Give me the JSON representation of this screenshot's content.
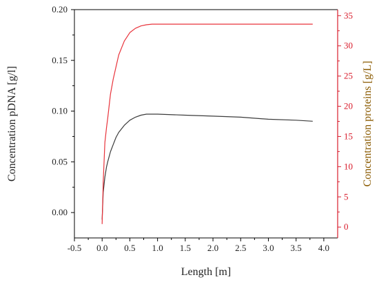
{
  "chart_data": {
    "type": "line",
    "title": "",
    "xlabel": "Length [m]",
    "ylabel": "Concentration pDNA [g/l]",
    "y2label": "Concentration proteins [g/L]",
    "xlim": [
      -0.5,
      4.25
    ],
    "ylim": [
      -0.025,
      0.2
    ],
    "y2lim": [
      -1.8,
      36
    ],
    "xticks": [
      -0.5,
      0.0,
      0.5,
      1.0,
      1.5,
      2.0,
      2.5,
      3.0,
      3.5,
      4.0
    ],
    "xtick_labels": [
      "-0.5",
      "0.0",
      "0.5",
      "1.0",
      "1.5",
      "2.0",
      "2.5",
      "3.0",
      "3.5",
      "4.0"
    ],
    "yticks": [
      0.0,
      0.05,
      0.1,
      0.15,
      0.2
    ],
    "ytick_labels": [
      "0.00",
      "0.05",
      "0.10",
      "0.15",
      "0.20"
    ],
    "y2ticks": [
      0,
      5,
      10,
      15,
      20,
      25,
      30,
      35
    ],
    "y2tick_labels": [
      "0",
      "5",
      "10",
      "15",
      "20",
      "25",
      "30",
      "35"
    ],
    "grid": false,
    "colors": {
      "pdna": "#3a3a3a",
      "proteins": "#e8323a",
      "left_axis": "#000000",
      "right_axis": "#d81b2b",
      "right_label": "#8a5a00"
    },
    "series": [
      {
        "axis": "left",
        "x": [
          0.0,
          0.02,
          0.05,
          0.08,
          0.1,
          0.15,
          0.2,
          0.25,
          0.3,
          0.4,
          0.5,
          0.6,
          0.7,
          0.8,
          0.9,
          1.0,
          1.5,
          2.0,
          2.5,
          3.0,
          3.5,
          3.8
        ],
        "y": [
          -0.007,
          0.02,
          0.035,
          0.045,
          0.05,
          0.06,
          0.067,
          0.074,
          0.079,
          0.086,
          0.091,
          0.094,
          0.096,
          0.097,
          0.097,
          0.097,
          0.096,
          0.095,
          0.094,
          0.092,
          0.091,
          0.09
        ]
      },
      {
        "axis": "right",
        "x": [
          0.0,
          0.02,
          0.05,
          0.08,
          0.1,
          0.15,
          0.2,
          0.25,
          0.3,
          0.4,
          0.5,
          0.6,
          0.7,
          0.8,
          0.9,
          1.0,
          1.5,
          2.0,
          2.5,
          3.0,
          3.5,
          3.8
        ],
        "y": [
          0.5,
          7.5,
          14.0,
          16.5,
          18.0,
          22.0,
          24.5,
          26.5,
          28.5,
          30.8,
          32.2,
          32.9,
          33.3,
          33.5,
          33.6,
          33.6,
          33.6,
          33.6,
          33.6,
          33.6,
          33.6,
          33.6
        ]
      }
    ]
  }
}
